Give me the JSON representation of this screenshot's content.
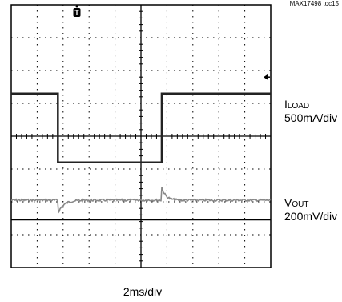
{
  "doc_id": "MAX17498 toc15",
  "chart_data": {
    "type": "line",
    "title": "",
    "xlabel": "2ms/div",
    "x_divisions": 10,
    "y_divisions": 8,
    "grid": true,
    "trigger_marker": "T",
    "series": [
      {
        "label_main": "I",
        "label_sub": "LOAD",
        "scale": "500mA/div",
        "color": "#222222",
        "levels_div": {
          "low": 2.7,
          "high": 4.8
        },
        "step_up_div": 1.8,
        "step_down_div": 5.8
      },
      {
        "label_main": "V",
        "label_sub": "OUT",
        "scale": "200mV/div",
        "color": "#888888",
        "nominal_div": 5.95,
        "dip_div": 0.4,
        "overshoot_div": 0.4,
        "transient_up_div": 1.8,
        "transient_down_div": 5.8
      }
    ],
    "reference_line_div": 6.55,
    "marker_arrow_div": 2.2
  }
}
